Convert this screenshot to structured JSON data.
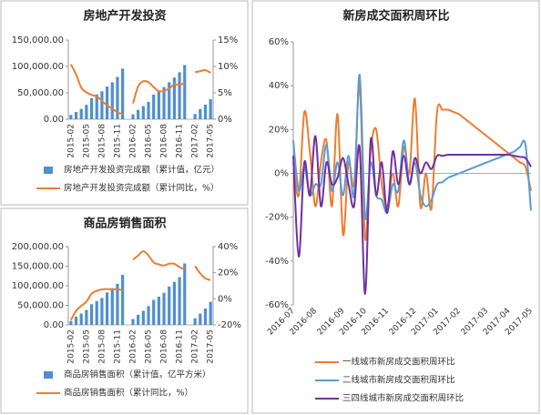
{
  "chart_data": [
    {
      "type": "combo",
      "title": "房地产开发投资",
      "categories": [
        "2015-02",
        null,
        null,
        "2015-05",
        null,
        null,
        "2015-08",
        null,
        null,
        "2015-11",
        null,
        null,
        "2016-02",
        null,
        null,
        "2016-05",
        null,
        null,
        "2016-08",
        null,
        null,
        "2016-11",
        null,
        null,
        "2017-02",
        null,
        null,
        "2017-05"
      ],
      "series": [
        {
          "name": "房地产开发投资完成额（累计值，亿元）",
          "type": "bar",
          "color": "#4f8fcf",
          "values": [
            8166,
            13656,
            19629,
            27216,
            40000,
            47000,
            53000,
            62000,
            70000,
            80000,
            96000,
            null,
            9300,
            17700,
            25000,
            33000,
            46600,
            53000,
            61000,
            70000,
            79000,
            89000,
            102600,
            null,
            9900,
            19300,
            27700,
            38000
          ]
        },
        {
          "name": "房地产开发投资完成额（累计同比，%）",
          "type": "line",
          "axis": "y2",
          "color": "#ed7d31",
          "values": [
            10.4,
            8.5,
            6.0,
            5.1,
            4.6,
            4.3,
            3.5,
            2.6,
            2.0,
            1.3,
            1.0,
            null,
            3.0,
            6.2,
            7.2,
            7.0,
            6.1,
            5.3,
            5.4,
            5.8,
            6.6,
            6.5,
            6.9,
            null,
            8.9,
            9.1,
            9.3,
            8.8
          ]
        }
      ],
      "ylim": [
        0,
        150000
      ],
      "yticks": [
        {
          "value": 0,
          "label": "0.00"
        },
        {
          "value": 50000,
          "label": "50,000.00"
        },
        {
          "value": 100000,
          "label": "100,000.00"
        },
        {
          "value": 150000,
          "label": "150,000.00"
        }
      ],
      "y2lim": [
        0,
        15
      ],
      "y2ticks": [
        {
          "value": 0,
          "label": "0%"
        },
        {
          "value": 5,
          "label": "5%"
        },
        {
          "value": 10,
          "label": "10%"
        },
        {
          "value": 15,
          "label": "15%"
        }
      ],
      "grid": false,
      "legend": "bottom"
    },
    {
      "type": "combo",
      "title": "商品房销售面积",
      "categories": [
        "2015-02",
        null,
        null,
        "2015-05",
        null,
        null,
        "2015-08",
        null,
        null,
        "2015-11",
        null,
        null,
        "2016-02",
        null,
        null,
        "2016-05",
        null,
        null,
        "2016-08",
        null,
        null,
        "2016-11",
        null,
        null,
        "2017-02",
        null,
        null,
        "2017-05"
      ],
      "series": [
        {
          "name": "商品房销售面积（累计值，亿平方米）",
          "type": "bar",
          "color": "#4f8fcf",
          "values": [
            10000,
            21000,
            29000,
            38000,
            53000,
            61000,
            69000,
            83000,
            94000,
            105000,
            128000,
            null,
            15000,
            26000,
            36000,
            48000,
            64000,
            72000,
            82000,
            98000,
            110000,
            122000,
            157000,
            null,
            17000,
            29000,
            42000,
            59000
          ]
        },
        {
          "name": "商品房销售面积（累计同比，%）",
          "type": "line",
          "axis": "y2",
          "color": "#ed7d31",
          "values": [
            -16.3,
            -9.2,
            -5.4,
            -2.2,
            3.9,
            6.1,
            7.2,
            7.5,
            7.2,
            7.4,
            6.5,
            null,
            30.1,
            33.1,
            36.5,
            33.2,
            27.9,
            26.4,
            25.5,
            26.9,
            26.8,
            24.3,
            22.5,
            null,
            25.1,
            19.5,
            15.7,
            14.3
          ]
        }
      ],
      "ylim": [
        0,
        200000
      ],
      "yticks": [
        {
          "value": 0,
          "label": "0.00"
        },
        {
          "value": 50000,
          "label": "50,000.00"
        },
        {
          "value": 100000,
          "label": "100,000.00"
        },
        {
          "value": 150000,
          "label": "150,000.00"
        },
        {
          "value": 200000,
          "label": "200,000.00"
        }
      ],
      "y2lim": [
        -20,
        40
      ],
      "y2ticks": [
        {
          "value": -20,
          "label": "-20%"
        },
        {
          "value": 0,
          "label": "0%"
        },
        {
          "value": 20,
          "label": "20%"
        },
        {
          "value": 40,
          "label": "40%"
        }
      ],
      "grid": false,
      "legend": "bottom"
    },
    {
      "type": "line",
      "title": "新房成交面积周环比",
      "categories": [
        "2016-07",
        null,
        null,
        null,
        "2016-08",
        null,
        null,
        null,
        null,
        "2016-09",
        null,
        null,
        null,
        "2016-10",
        null,
        null,
        null,
        "2016-11",
        null,
        null,
        null,
        null,
        "2016-12",
        null,
        null,
        null,
        "2017-01",
        null,
        null,
        null,
        "2017-02",
        null,
        null,
        null,
        null,
        "2017-03",
        null,
        null,
        null,
        "2017-04",
        null,
        null,
        null,
        "2017-05"
      ],
      "series": [
        {
          "name": "一线城市新房成交面积周环比",
          "color": "#ed7d31",
          "values": [
            5,
            -10,
            28,
            10,
            -15,
            5,
            15,
            -15,
            27,
            -28,
            5,
            -5,
            40,
            -30,
            10,
            20,
            -5,
            -15,
            0,
            -15,
            12,
            0,
            34,
            -15,
            0,
            -16,
            28,
            29,
            29,
            28,
            27,
            25,
            23,
            21,
            19,
            17,
            15,
            13,
            11,
            9,
            7,
            5,
            3,
            -8
          ]
        },
        {
          "name": "二线城市新房成交面积周环比",
          "color": "#5b9bd5",
          "values": [
            15,
            -8,
            3,
            -10,
            -5,
            -5,
            13,
            -8,
            5,
            -10,
            8,
            -10,
            45,
            -20,
            5,
            -10,
            -12,
            -18,
            -5,
            -8,
            15,
            -5,
            5,
            -10,
            -15,
            -12,
            -5,
            -4,
            -2,
            -1,
            0,
            1,
            2,
            3,
            4,
            5,
            6,
            7,
            8,
            9,
            10,
            12,
            13,
            -17
          ]
        },
        {
          "name": "三四线城市新房成交面积周环比",
          "color": "#7030a0",
          "values": [
            8,
            -38,
            5,
            -10,
            17,
            -15,
            5,
            -5,
            -2,
            7,
            -5,
            -15,
            12,
            -55,
            15,
            -10,
            5,
            -18,
            10,
            -5,
            8,
            -5,
            7,
            0,
            5,
            2,
            8,
            8,
            8.5,
            8.5,
            8.5,
            8.5,
            8.5,
            8.5,
            8.5,
            8.5,
            8.5,
            8.5,
            8.5,
            8.5,
            8,
            7.5,
            7,
            3
          ]
        }
      ],
      "ylim": [
        -60,
        60
      ],
      "yticks": [
        {
          "value": -60,
          "label": "-60%"
        },
        {
          "value": -40,
          "label": "-40%"
        },
        {
          "value": -20,
          "label": "-20%"
        },
        {
          "value": 0,
          "label": "0%"
        },
        {
          "value": 20,
          "label": "20%"
        },
        {
          "value": 40,
          "label": "40%"
        },
        {
          "value": 60,
          "label": "60%"
        }
      ],
      "grid": false,
      "legend": "bottom"
    }
  ]
}
